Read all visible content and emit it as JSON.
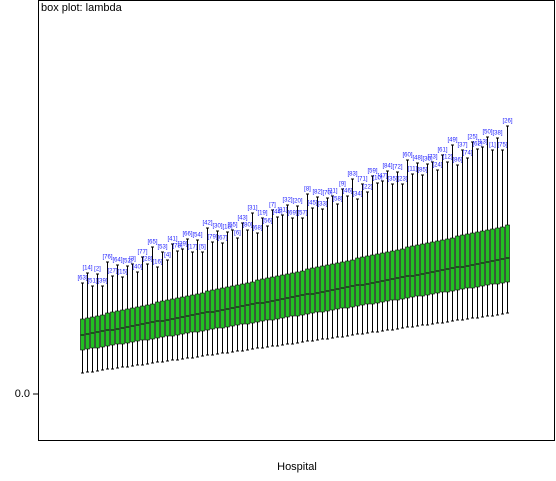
{
  "chart_data": {
    "type": "box",
    "title": "box plot: lambda",
    "x_label": "Hospital",
    "categories": [
      "[63]",
      "[14]",
      "[51]",
      "[2]",
      "[39]",
      "[76]",
      "[27]",
      "[64]",
      "[15]",
      "[52]",
      "[3]",
      "[40]",
      "[77]",
      "[28]",
      "[65]",
      "[16]",
      "[53]",
      "[4]",
      "[41]",
      "[78]",
      "[29]",
      "[66]",
      "[17]",
      "[54]",
      "[5]",
      "[42]",
      "[79]",
      "[30]",
      "[67]",
      "[18]",
      "[55]",
      "[6]",
      "[43]",
      "[80]",
      "[31]",
      "[68]",
      "[19]",
      "[56]",
      "[7]",
      "[44]",
      "[81]",
      "[32]",
      "[69]",
      "[20]",
      "[57]",
      "[8]",
      "[45]",
      "[82]",
      "[33]",
      "[70]",
      "[21]",
      "[58]",
      "[9]",
      "[46]",
      "[83]",
      "[34]",
      "[71]",
      "[22]",
      "[59]",
      "[10]",
      "[47]",
      "[84]",
      "[35]",
      "[72]",
      "[23]",
      "[60]",
      "[11]",
      "[48]",
      "[85]",
      "[36]",
      "[73]",
      "[24]",
      "[61]",
      "[12]",
      "[49]",
      "[86]",
      "[37]",
      "[74]",
      "[25]",
      "[62]",
      "[13]",
      "[50]",
      "[1]",
      "[38]",
      "[75]",
      "[26]"
    ],
    "stats": [
      [
        0.021,
        0.044,
        0.059,
        0.075,
        0.111
      ],
      [
        0.022,
        0.045,
        0.06,
        0.076,
        0.121
      ],
      [
        0.022,
        0.046,
        0.061,
        0.077,
        0.108
      ],
      [
        0.023,
        0.046,
        0.062,
        0.078,
        0.12
      ],
      [
        0.024,
        0.047,
        0.063,
        0.079,
        0.108
      ],
      [
        0.025,
        0.048,
        0.064,
        0.081,
        0.132
      ],
      [
        0.025,
        0.049,
        0.064,
        0.082,
        0.118
      ],
      [
        0.026,
        0.05,
        0.065,
        0.083,
        0.129
      ],
      [
        0.027,
        0.05,
        0.066,
        0.084,
        0.117
      ],
      [
        0.027,
        0.051,
        0.067,
        0.085,
        0.128
      ],
      [
        0.028,
        0.052,
        0.068,
        0.086,
        0.13
      ],
      [
        0.029,
        0.053,
        0.069,
        0.087,
        0.122
      ],
      [
        0.029,
        0.054,
        0.07,
        0.088,
        0.137
      ],
      [
        0.03,
        0.054,
        0.071,
        0.089,
        0.13
      ],
      [
        0.031,
        0.055,
        0.072,
        0.09,
        0.147
      ],
      [
        0.032,
        0.056,
        0.073,
        0.092,
        0.127
      ],
      [
        0.032,
        0.057,
        0.073,
        0.093,
        0.142
      ],
      [
        0.033,
        0.058,
        0.074,
        0.094,
        0.134
      ],
      [
        0.034,
        0.058,
        0.075,
        0.095,
        0.15
      ],
      [
        0.034,
        0.059,
        0.076,
        0.096,
        0.143
      ],
      [
        0.035,
        0.06,
        0.077,
        0.097,
        0.145
      ],
      [
        0.036,
        0.061,
        0.078,
        0.098,
        0.155
      ],
      [
        0.036,
        0.062,
        0.079,
        0.099,
        0.142
      ],
      [
        0.037,
        0.062,
        0.08,
        0.1,
        0.154
      ],
      [
        0.038,
        0.063,
        0.081,
        0.101,
        0.142
      ],
      [
        0.039,
        0.064,
        0.082,
        0.103,
        0.166
      ],
      [
        0.039,
        0.065,
        0.082,
        0.104,
        0.152
      ],
      [
        0.04,
        0.066,
        0.083,
        0.105,
        0.163
      ],
      [
        0.041,
        0.066,
        0.084,
        0.106,
        0.151
      ],
      [
        0.041,
        0.067,
        0.085,
        0.107,
        0.162
      ],
      [
        0.042,
        0.068,
        0.086,
        0.108,
        0.164
      ],
      [
        0.043,
        0.069,
        0.087,
        0.109,
        0.156
      ],
      [
        0.043,
        0.07,
        0.088,
        0.11,
        0.171
      ],
      [
        0.044,
        0.07,
        0.089,
        0.111,
        0.164
      ],
      [
        0.045,
        0.071,
        0.09,
        0.112,
        0.181
      ],
      [
        0.046,
        0.072,
        0.091,
        0.114,
        0.161
      ],
      [
        0.046,
        0.073,
        0.091,
        0.115,
        0.176
      ],
      [
        0.047,
        0.074,
        0.092,
        0.116,
        0.168
      ],
      [
        0.048,
        0.074,
        0.093,
        0.117,
        0.184
      ],
      [
        0.048,
        0.075,
        0.094,
        0.118,
        0.177
      ],
      [
        0.049,
        0.076,
        0.095,
        0.119,
        0.179
      ],
      [
        0.05,
        0.077,
        0.096,
        0.12,
        0.189
      ],
      [
        0.05,
        0.078,
        0.097,
        0.121,
        0.176
      ],
      [
        0.051,
        0.078,
        0.098,
        0.122,
        0.188
      ],
      [
        0.052,
        0.079,
        0.099,
        0.123,
        0.176
      ],
      [
        0.053,
        0.08,
        0.1,
        0.125,
        0.2
      ],
      [
        0.053,
        0.081,
        0.1,
        0.126,
        0.186
      ],
      [
        0.054,
        0.082,
        0.101,
        0.127,
        0.197
      ],
      [
        0.055,
        0.082,
        0.102,
        0.128,
        0.185
      ],
      [
        0.055,
        0.083,
        0.103,
        0.129,
        0.196
      ],
      [
        0.056,
        0.084,
        0.104,
        0.13,
        0.198
      ],
      [
        0.057,
        0.085,
        0.105,
        0.131,
        0.19
      ],
      [
        0.057,
        0.086,
        0.106,
        0.132,
        0.205
      ],
      [
        0.058,
        0.086,
        0.107,
        0.133,
        0.198
      ],
      [
        0.059,
        0.087,
        0.108,
        0.134,
        0.215
      ],
      [
        0.06,
        0.088,
        0.109,
        0.136,
        0.195
      ],
      [
        0.06,
        0.089,
        0.109,
        0.137,
        0.21
      ],
      [
        0.061,
        0.09,
        0.11,
        0.138,
        0.202
      ],
      [
        0.062,
        0.09,
        0.111,
        0.139,
        0.218
      ],
      [
        0.062,
        0.091,
        0.112,
        0.14,
        0.211
      ],
      [
        0.063,
        0.092,
        0.113,
        0.141,
        0.213
      ],
      [
        0.064,
        0.093,
        0.114,
        0.142,
        0.223
      ],
      [
        0.064,
        0.094,
        0.115,
        0.143,
        0.21
      ],
      [
        0.065,
        0.094,
        0.116,
        0.144,
        0.222
      ],
      [
        0.066,
        0.095,
        0.117,
        0.145,
        0.21
      ],
      [
        0.067,
        0.096,
        0.118,
        0.147,
        0.234
      ],
      [
        0.067,
        0.097,
        0.118,
        0.148,
        0.22
      ],
      [
        0.068,
        0.098,
        0.119,
        0.149,
        0.231
      ],
      [
        0.069,
        0.098,
        0.12,
        0.15,
        0.219
      ],
      [
        0.069,
        0.099,
        0.121,
        0.151,
        0.23
      ],
      [
        0.07,
        0.1,
        0.122,
        0.152,
        0.232
      ],
      [
        0.071,
        0.101,
        0.123,
        0.153,
        0.224
      ],
      [
        0.071,
        0.102,
        0.124,
        0.154,
        0.239
      ],
      [
        0.072,
        0.102,
        0.125,
        0.155,
        0.232
      ],
      [
        0.073,
        0.103,
        0.126,
        0.156,
        0.249
      ],
      [
        0.074,
        0.104,
        0.127,
        0.158,
        0.229
      ],
      [
        0.074,
        0.105,
        0.127,
        0.159,
        0.244
      ],
      [
        0.075,
        0.106,
        0.128,
        0.16,
        0.236
      ],
      [
        0.076,
        0.106,
        0.129,
        0.161,
        0.252
      ],
      [
        0.076,
        0.107,
        0.13,
        0.162,
        0.245
      ],
      [
        0.077,
        0.108,
        0.131,
        0.163,
        0.247
      ],
      [
        0.078,
        0.109,
        0.132,
        0.164,
        0.257
      ],
      [
        0.078,
        0.11,
        0.133,
        0.165,
        0.244
      ],
      [
        0.079,
        0.11,
        0.134,
        0.166,
        0.256
      ],
      [
        0.08,
        0.111,
        0.135,
        0.167,
        0.244
      ],
      [
        0.081,
        0.112,
        0.136,
        0.169,
        0.268
      ]
    ],
    "color": "#22c022",
    "label_color": "#2020ff",
    "ylim": [
      -0.047,
      0.394
    ],
    "yticks": [
      {
        "value": 0,
        "label": "0.0"
      }
    ]
  }
}
